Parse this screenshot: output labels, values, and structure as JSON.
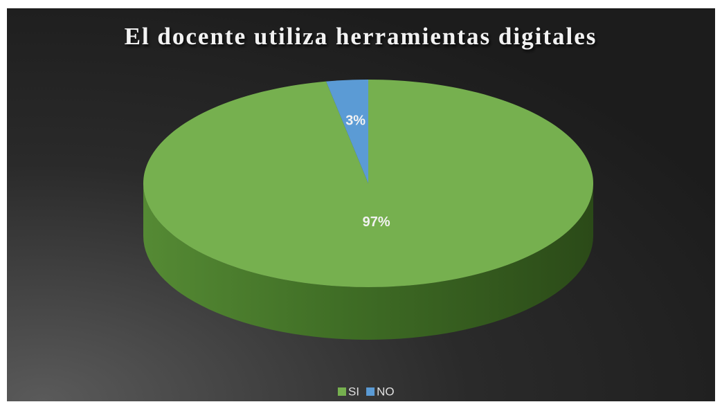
{
  "chart_data": {
    "type": "pie",
    "title": "El docente utiliza herramientas digitales",
    "categories": [
      "SI",
      "NO"
    ],
    "values": [
      97,
      3
    ],
    "value_labels": [
      "97%",
      "3%"
    ],
    "colors": [
      "#76b04f",
      "#5b9bd5"
    ],
    "legend": "bottom"
  }
}
